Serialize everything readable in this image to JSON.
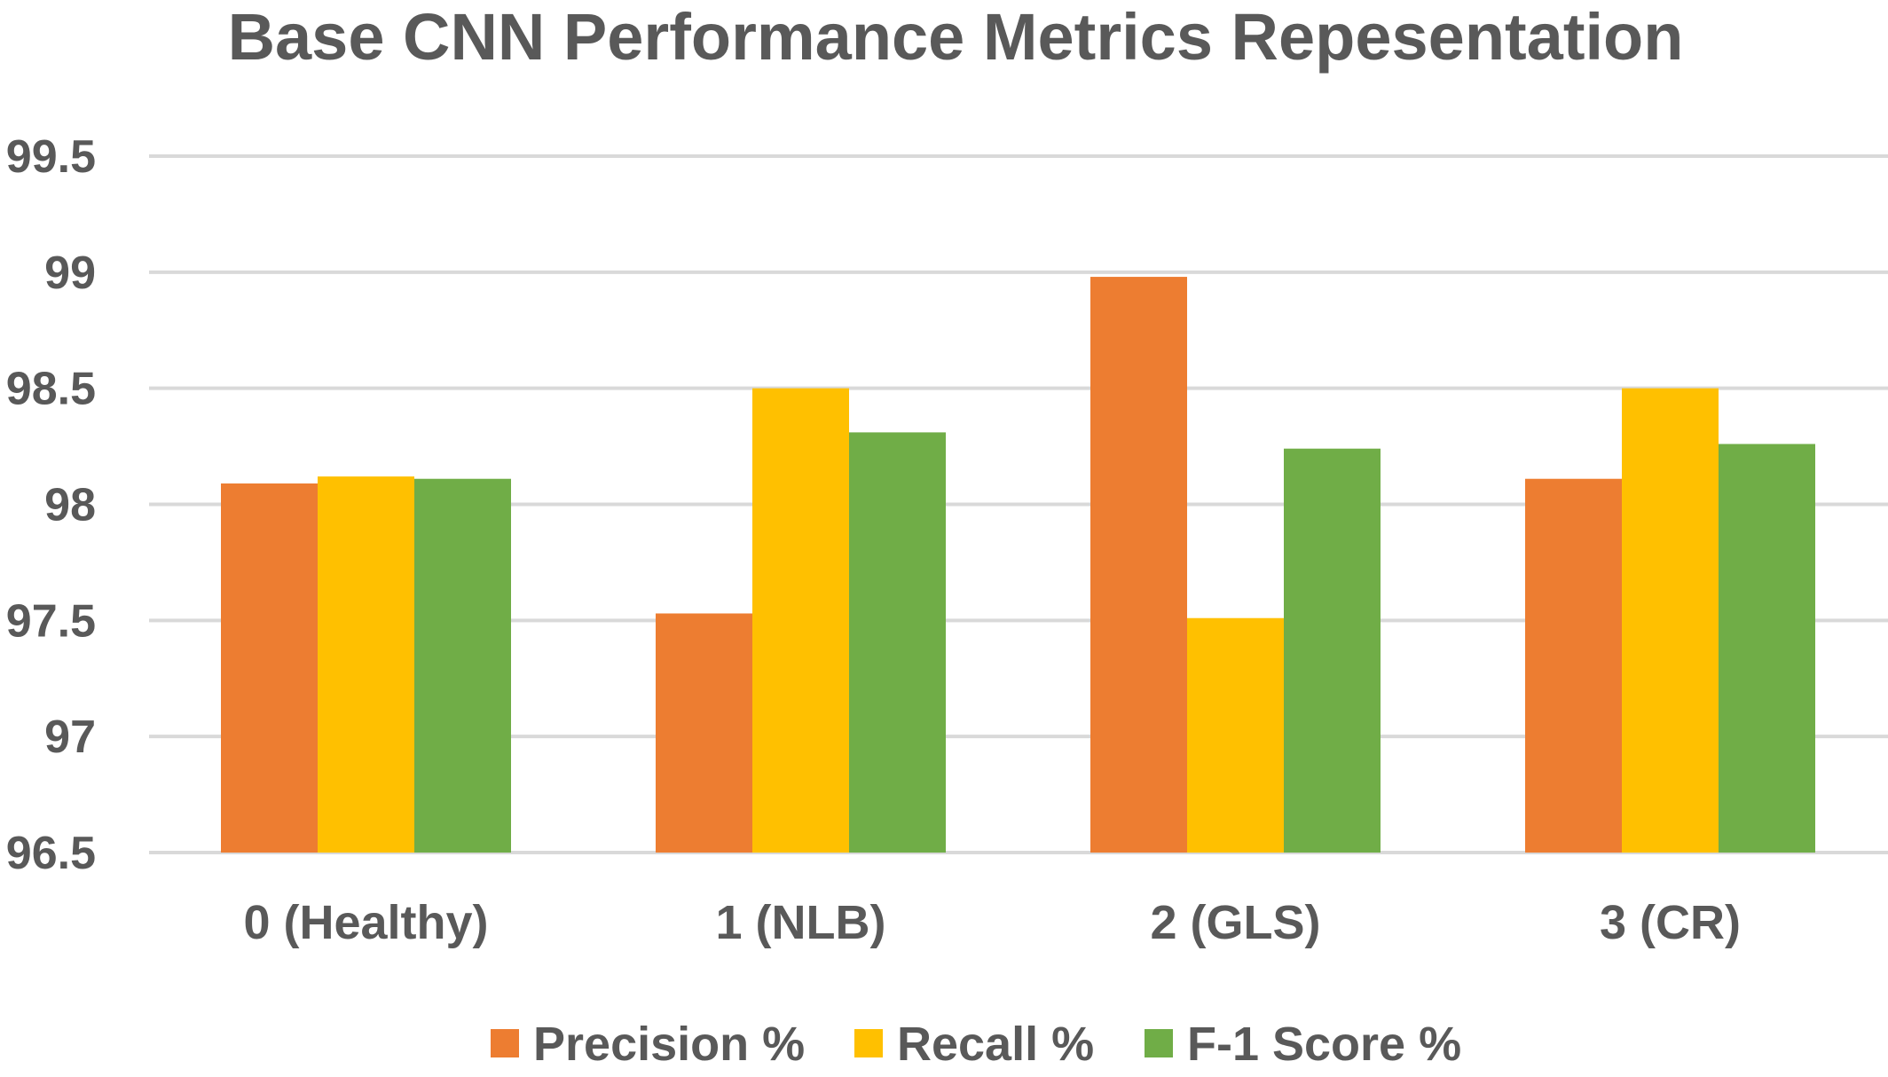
{
  "chart_data": {
    "type": "bar",
    "title": "Base CNN Performance Metrics Repesentation",
    "xlabel": "",
    "ylabel": "",
    "categories": [
      "0 (Healthy)",
      "1 (NLB)",
      "2 (GLS)",
      "3 (CR)"
    ],
    "series": [
      {
        "name": "Precision %",
        "color": "#ed7d31",
        "values": [
          98.09,
          97.53,
          98.98,
          98.11
        ]
      },
      {
        "name": "Recall %",
        "color": "#ffc000",
        "values": [
          98.12,
          98.5,
          97.51,
          98.5
        ]
      },
      {
        "name": "F-1 Score %",
        "color": "#70ad47",
        "values": [
          98.11,
          98.31,
          98.24,
          98.26
        ]
      }
    ],
    "ylim": [
      96.5,
      99.5
    ],
    "yticks": [
      "96.5",
      "97",
      "97.5",
      "98",
      "98.5",
      "99",
      "99.5"
    ],
    "grid": true,
    "legend_position": "bottom"
  }
}
